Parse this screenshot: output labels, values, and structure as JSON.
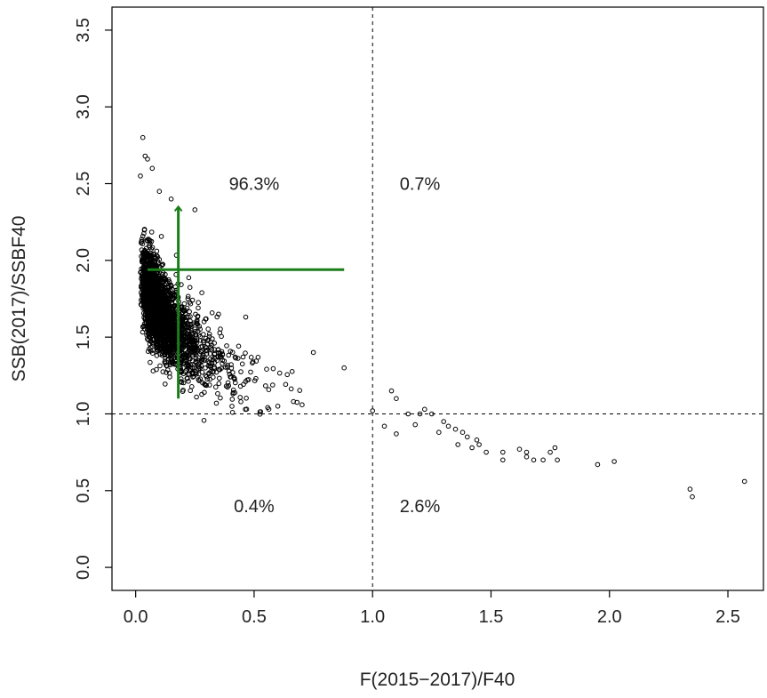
{
  "chart_data": {
    "type": "scatter",
    "title": "",
    "xlabel": "F(2015−2017)/F40",
    "ylabel": "SSB(2017)/SSBF40",
    "xlim": [
      -0.1,
      2.65
    ],
    "ylim": [
      -0.15,
      3.65
    ],
    "xticks": [
      "0.0",
      "0.5",
      "1.0",
      "1.5",
      "2.0",
      "2.5"
    ],
    "yticks": [
      "0.0",
      "0.5",
      "1.0",
      "1.5",
      "2.0",
      "2.5",
      "3.0",
      "3.5"
    ],
    "reference_lines": {
      "x": 1.0,
      "y": 1.0,
      "style": "dashed"
    },
    "quadrant_labels": [
      {
        "text": "96.3%",
        "x": 0.5,
        "y": 2.5
      },
      {
        "text": "0.7%",
        "x": 1.2,
        "y": 2.5
      },
      {
        "text": "0.4%",
        "x": 0.5,
        "y": 0.4
      },
      {
        "text": "2.6%",
        "x": 1.2,
        "y": 0.4
      }
    ],
    "crosshair": {
      "color": "#1a7d1a",
      "x_point": 0.18,
      "x_interval": [
        0.05,
        0.88
      ],
      "y_point": 1.94,
      "y_interval": [
        1.1,
        2.35
      ]
    },
    "cloud": {
      "n": 2400,
      "x_min": 0.02,
      "curve_a": 2.25,
      "curve_c": 0.055,
      "curve_b": 0.56
    },
    "series": [
      {
        "marker": "open-circle",
        "color": "#000000",
        "points": [
          [
            0.03,
            2.8
          ],
          [
            0.04,
            2.68
          ],
          [
            0.05,
            2.66
          ],
          [
            0.02,
            2.55
          ],
          [
            0.07,
            2.6
          ],
          [
            0.1,
            2.45
          ],
          [
            0.15,
            2.4
          ],
          [
            0.25,
            2.33
          ],
          [
            0.13,
            1.6
          ],
          [
            0.16,
            1.7
          ],
          [
            0.35,
            1.65
          ],
          [
            0.6,
            1.05
          ],
          [
            0.75,
            1.4
          ],
          [
            0.88,
            1.3
          ],
          [
            1.0,
            1.02
          ],
          [
            1.05,
            0.92
          ],
          [
            1.08,
            1.15
          ],
          [
            1.1,
            1.1
          ],
          [
            1.15,
            1.0
          ],
          [
            1.2,
            1.0
          ],
          [
            1.22,
            1.03
          ],
          [
            1.25,
            1.0
          ],
          [
            1.18,
            0.93
          ],
          [
            1.1,
            0.87
          ],
          [
            1.28,
            0.88
          ],
          [
            1.3,
            0.95
          ],
          [
            1.32,
            0.92
          ],
          [
            1.35,
            0.9
          ],
          [
            1.36,
            0.8
          ],
          [
            1.38,
            0.88
          ],
          [
            1.4,
            0.85
          ],
          [
            1.42,
            0.78
          ],
          [
            1.44,
            0.83
          ],
          [
            1.45,
            0.8
          ],
          [
            1.48,
            0.75
          ],
          [
            1.55,
            0.75
          ],
          [
            1.55,
            0.7
          ],
          [
            1.62,
            0.77
          ],
          [
            1.65,
            0.75
          ],
          [
            1.65,
            0.72
          ],
          [
            1.68,
            0.7
          ],
          [
            1.72,
            0.7
          ],
          [
            1.75,
            0.75
          ],
          [
            1.77,
            0.78
          ],
          [
            1.78,
            0.7
          ],
          [
            1.95,
            0.67
          ],
          [
            2.02,
            0.69
          ],
          [
            2.34,
            0.51
          ],
          [
            2.35,
            0.46
          ],
          [
            2.57,
            0.56
          ]
        ]
      }
    ]
  }
}
